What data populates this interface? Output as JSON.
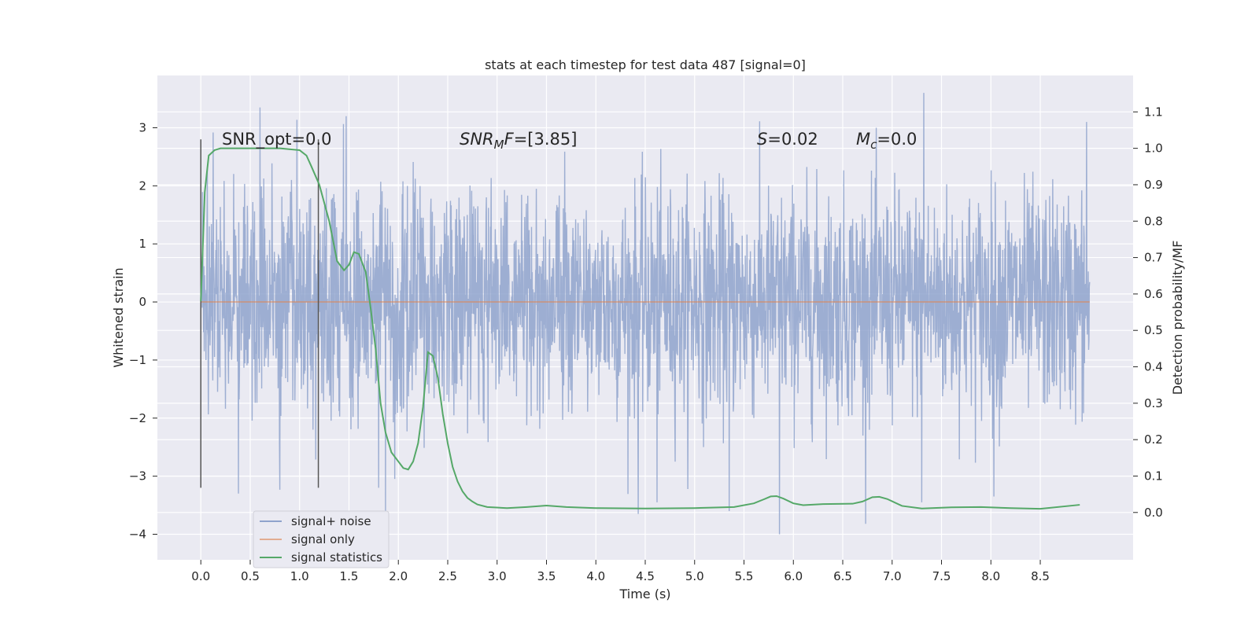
{
  "chart_data": {
    "type": "line",
    "title": "stats at each timestep for test data 487 [signal=0]",
    "xlabel": "Time (s)",
    "ylabel": "Whitened strain",
    "y2label": "Detection probability/MF",
    "xlim": [
      -0.44,
      9.44
    ],
    "ylim": [
      -4.44,
      3.9
    ],
    "y2lim": [
      -0.13,
      1.2
    ],
    "x_ticks": [
      "0.0",
      "0.5",
      "1.0",
      "1.5",
      "2.0",
      "2.5",
      "3.0",
      "3.5",
      "4.0",
      "4.5",
      "5.0",
      "5.5",
      "6.0",
      "6.5",
      "7.0",
      "7.5",
      "8.0",
      "8.5"
    ],
    "y_ticks": [
      "3",
      "2",
      "1",
      "0",
      "−1",
      "−2",
      "−3",
      "−4"
    ],
    "y2_ticks": [
      "1.1",
      "1.0",
      "0.9",
      "0.8",
      "0.7",
      "0.6",
      "0.5",
      "0.4",
      "0.3",
      "0.2",
      "0.1",
      "0.0"
    ],
    "grid": true,
    "legend_placement": "lower-left",
    "annotations": {
      "snr_opt": "SNR_opt=0.0",
      "snr_mf": "=[3.85]",
      "s_val": "=0.02",
      "mc_val": "=0.0"
    },
    "vertical_markers": [
      0.0,
      1.19
    ],
    "series": [
      {
        "name": "signal+ noise",
        "color": "#8fa3cc",
        "axis": "left",
        "x_range": [
          0.0,
          9.0
        ],
        "amplitude_envelope": [
          -4.0,
          3.6
        ],
        "spikes": [
          {
            "x": 0.38,
            "y": -3.3
          },
          {
            "x": 0.6,
            "y": 3.35
          },
          {
            "x": 1.47,
            "y": 3.2
          },
          {
            "x": 1.8,
            "y": -3.2
          },
          {
            "x": 1.87,
            "y": -3.65
          },
          {
            "x": 4.43,
            "y": 3.35
          },
          {
            "x": 4.43,
            "y": -3.65
          },
          {
            "x": 4.62,
            "y": -3.45
          },
          {
            "x": 5.35,
            "y": 3.0
          },
          {
            "x": 5.35,
            "y": -3.6
          },
          {
            "x": 5.86,
            "y": -4.0
          },
          {
            "x": 7.32,
            "y": 3.6
          },
          {
            "x": 7.3,
            "y": -3.45
          },
          {
            "x": 8.03,
            "y": -3.35
          },
          {
            "x": 8.97,
            "y": 3.1
          }
        ]
      },
      {
        "name": "signal only",
        "color": "#dd8452",
        "axis": "left",
        "x": [
          0.0,
          9.0
        ],
        "values": [
          0.0,
          0.0
        ]
      },
      {
        "name": "signal statistics",
        "color": "#55a868",
        "axis": "right",
        "x": [
          0.0,
          0.04,
          0.08,
          0.14,
          0.2,
          0.3,
          0.5,
          0.8,
          1.0,
          1.07,
          1.12,
          1.2,
          1.3,
          1.38,
          1.45,
          1.5,
          1.55,
          1.6,
          1.67,
          1.72,
          1.77,
          1.82,
          1.87,
          1.93,
          2.0,
          2.05,
          2.1,
          2.15,
          2.2,
          2.25,
          2.3,
          2.35,
          2.4,
          2.45,
          2.5,
          2.55,
          2.6,
          2.65,
          2.7,
          2.75,
          2.8,
          2.9,
          3.1,
          3.3,
          3.5,
          3.7,
          4.0,
          4.5,
          5.0,
          5.4,
          5.6,
          5.7,
          5.77,
          5.83,
          5.9,
          6.0,
          6.1,
          6.3,
          6.6,
          6.7,
          6.8,
          6.87,
          6.95,
          7.1,
          7.3,
          7.6,
          7.9,
          8.2,
          8.5,
          8.9
        ],
        "values": [
          0.58,
          0.88,
          0.98,
          0.995,
          1.0,
          1.0,
          1.0,
          1.0,
          0.995,
          0.98,
          0.95,
          0.9,
          0.8,
          0.69,
          0.665,
          0.68,
          0.715,
          0.71,
          0.66,
          0.56,
          0.45,
          0.3,
          0.22,
          0.165,
          0.14,
          0.122,
          0.118,
          0.14,
          0.19,
          0.29,
          0.44,
          0.43,
          0.37,
          0.27,
          0.19,
          0.125,
          0.085,
          0.058,
          0.04,
          0.03,
          0.022,
          0.015,
          0.012,
          0.015,
          0.019,
          0.015,
          0.012,
          0.011,
          0.012,
          0.015,
          0.025,
          0.036,
          0.044,
          0.045,
          0.038,
          0.025,
          0.02,
          0.023,
          0.024,
          0.03,
          0.042,
          0.043,
          0.037,
          0.018,
          0.011,
          0.014,
          0.015,
          0.012,
          0.01,
          0.021
        ]
      }
    ]
  }
}
